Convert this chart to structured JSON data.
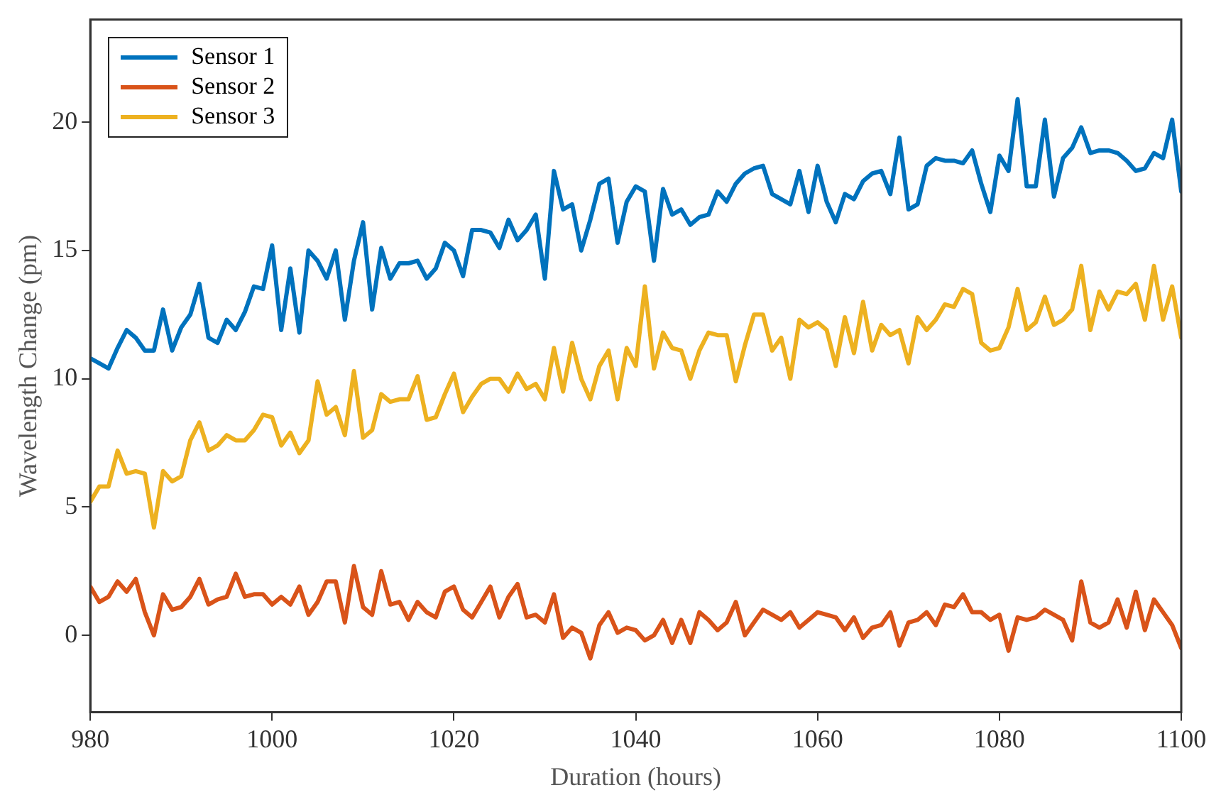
{
  "chart_data": {
    "type": "line",
    "xlabel": "Duration (hours)",
    "ylabel": "Wavelength Change (pm)",
    "x": [
      980,
      981,
      982,
      983,
      984,
      985,
      986,
      987,
      988,
      989,
      990,
      991,
      992,
      993,
      994,
      995,
      996,
      997,
      998,
      999,
      1000,
      1001,
      1002,
      1003,
      1004,
      1005,
      1006,
      1007,
      1008,
      1009,
      1010,
      1011,
      1012,
      1013,
      1014,
      1015,
      1016,
      1017,
      1018,
      1019,
      1020,
      1021,
      1022,
      1023,
      1024,
      1025,
      1026,
      1027,
      1028,
      1029,
      1030,
      1031,
      1032,
      1033,
      1034,
      1035,
      1036,
      1037,
      1038,
      1039,
      1040,
      1041,
      1042,
      1043,
      1044,
      1045,
      1046,
      1047,
      1048,
      1049,
      1050,
      1051,
      1052,
      1053,
      1054,
      1055,
      1056,
      1057,
      1058,
      1059,
      1060,
      1061,
      1062,
      1063,
      1064,
      1065,
      1066,
      1067,
      1068,
      1069,
      1070,
      1071,
      1072,
      1073,
      1074,
      1075,
      1076,
      1077,
      1078,
      1079,
      1080,
      1081,
      1082,
      1083,
      1084,
      1085,
      1086,
      1087,
      1088,
      1089,
      1090,
      1091,
      1092,
      1093,
      1094,
      1095,
      1096,
      1097,
      1098,
      1099,
      1100
    ],
    "series": [
      {
        "name": "Sensor 1",
        "color": "#0072bd",
        "values": [
          10.8,
          10.6,
          10.4,
          11.2,
          11.9,
          11.6,
          11.1,
          11.1,
          12.7,
          11.1,
          12.0,
          12.5,
          13.7,
          11.6,
          11.4,
          12.3,
          11.9,
          12.6,
          13.6,
          13.5,
          15.2,
          11.9,
          14.3,
          11.8,
          15.0,
          14.6,
          13.9,
          15.0,
          12.3,
          14.6,
          16.1,
          12.7,
          15.1,
          13.9,
          14.5,
          14.5,
          14.6,
          13.9,
          14.3,
          15.3,
          15.0,
          14.0,
          15.8,
          15.8,
          15.7,
          15.1,
          16.2,
          15.4,
          15.8,
          16.4,
          13.9,
          18.1,
          16.6,
          16.8,
          15.0,
          16.2,
          17.6,
          17.8,
          15.3,
          16.9,
          17.5,
          17.3,
          14.6,
          17.4,
          16.4,
          16.6,
          16.0,
          16.3,
          16.4,
          17.3,
          16.9,
          17.6,
          18.0,
          18.2,
          18.3,
          17.2,
          17.0,
          16.8,
          18.1,
          16.5,
          18.3,
          16.9,
          16.1,
          17.2,
          17.0,
          17.7,
          18.0,
          18.1,
          17.2,
          19.4,
          16.6,
          16.8,
          18.3,
          18.6,
          18.5,
          18.5,
          18.4,
          18.9,
          17.6,
          16.5,
          18.7,
          18.1,
          20.9,
          17.5,
          17.5,
          20.1,
          17.1,
          18.6,
          19.0,
          19.8,
          18.8,
          18.9,
          18.9,
          18.8,
          18.5,
          18.1,
          18.2,
          18.8,
          18.6,
          20.1,
          17.3
        ]
      },
      {
        "name": "Sensor 2",
        "color": "#d95319",
        "values": [
          1.9,
          1.3,
          1.5,
          2.1,
          1.7,
          2.2,
          0.9,
          0.0,
          1.6,
          1.0,
          1.1,
          1.5,
          2.2,
          1.2,
          1.4,
          1.5,
          2.4,
          1.5,
          1.6,
          1.6,
          1.2,
          1.5,
          1.2,
          1.9,
          0.8,
          1.3,
          2.1,
          2.1,
          0.5,
          2.7,
          1.1,
          0.8,
          2.5,
          1.2,
          1.3,
          0.6,
          1.3,
          0.9,
          0.7,
          1.7,
          1.9,
          1.0,
          0.7,
          1.3,
          1.9,
          0.7,
          1.5,
          2.0,
          0.7,
          0.8,
          0.5,
          1.6,
          -0.1,
          0.3,
          0.1,
          -0.9,
          0.4,
          0.9,
          0.1,
          0.3,
          0.2,
          -0.2,
          0.0,
          0.6,
          -0.3,
          0.6,
          -0.3,
          0.9,
          0.6,
          0.2,
          0.5,
          1.3,
          0.0,
          0.5,
          1.0,
          0.8,
          0.6,
          0.9,
          0.3,
          0.6,
          0.9,
          0.8,
          0.7,
          0.2,
          0.7,
          -0.1,
          0.3,
          0.4,
          0.9,
          -0.4,
          0.5,
          0.6,
          0.9,
          0.4,
          1.2,
          1.1,
          1.6,
          0.9,
          0.9,
          0.6,
          0.8,
          -0.6,
          0.7,
          0.6,
          0.7,
          1.0,
          0.8,
          0.6,
          -0.2,
          2.1,
          0.5,
          0.3,
          0.5,
          1.4,
          0.3,
          1.7,
          0.2,
          1.4,
          0.9,
          0.4,
          -0.5
        ]
      },
      {
        "name": "Sensor 3",
        "color": "#edb120",
        "values": [
          5.2,
          5.8,
          5.8,
          7.2,
          6.3,
          6.4,
          6.3,
          4.2,
          6.4,
          6.0,
          6.2,
          7.6,
          8.3,
          7.2,
          7.4,
          7.8,
          7.6,
          7.6,
          8.0,
          8.6,
          8.5,
          7.4,
          7.9,
          7.1,
          7.6,
          9.9,
          8.6,
          8.9,
          7.8,
          10.3,
          7.7,
          8.0,
          9.4,
          9.1,
          9.2,
          9.2,
          10.1,
          8.4,
          8.5,
          9.4,
          10.2,
          8.7,
          9.3,
          9.8,
          10.0,
          10.0,
          9.5,
          10.2,
          9.6,
          9.8,
          9.2,
          11.2,
          9.5,
          11.4,
          10.0,
          9.2,
          10.5,
          11.1,
          9.2,
          11.2,
          10.5,
          13.6,
          10.4,
          11.8,
          11.2,
          11.1,
          10.0,
          11.1,
          11.8,
          11.7,
          11.7,
          9.9,
          11.3,
          12.5,
          12.5,
          11.1,
          11.6,
          10.0,
          12.3,
          12.0,
          12.2,
          11.9,
          10.5,
          12.4,
          11.0,
          13.0,
          11.1,
          12.1,
          11.7,
          11.9,
          10.6,
          12.4,
          11.9,
          12.3,
          12.9,
          12.8,
          13.5,
          13.3,
          11.4,
          11.1,
          11.2,
          12.0,
          13.5,
          11.9,
          12.2,
          13.2,
          12.1,
          12.3,
          12.7,
          14.4,
          11.9,
          13.4,
          12.7,
          13.4,
          13.3,
          13.7,
          12.3,
          14.4,
          12.3,
          13.6,
          11.6
        ]
      }
    ],
    "xlim": [
      980,
      1100
    ],
    "xticks": [
      980,
      1000,
      1020,
      1040,
      1060,
      1080,
      1100
    ],
    "ylim": [
      -3,
      24
    ],
    "yticks": [
      0,
      5,
      10,
      15,
      20
    ],
    "grid": false,
    "legend": "top left",
    "marker": "none",
    "line_style": "solid"
  }
}
